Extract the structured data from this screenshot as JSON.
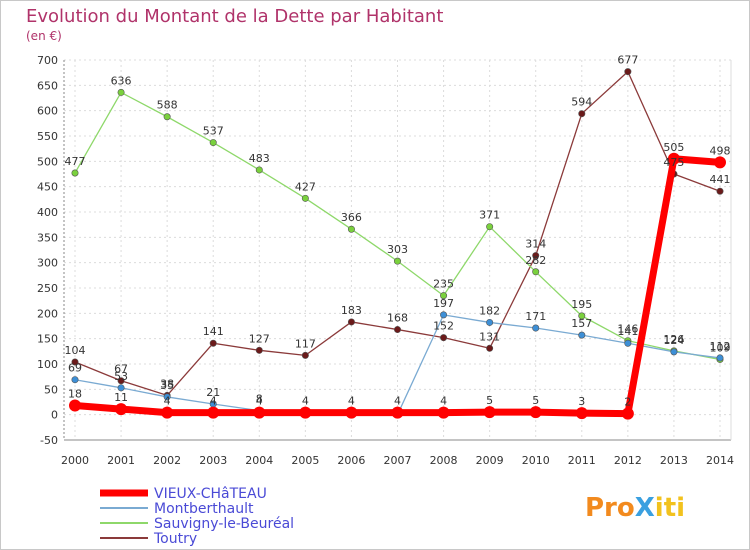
{
  "chart_data": {
    "type": "line",
    "title": "Evolution du Montant de la Dette par Habitant",
    "subtitle": "(en €)",
    "xlabel": "",
    "ylabel": "",
    "ylim": [
      -50,
      700
    ],
    "yticks": [
      -50,
      0,
      50,
      100,
      150,
      200,
      250,
      300,
      350,
      400,
      450,
      500,
      550,
      600,
      650,
      700
    ],
    "x": [
      "2000",
      "2001",
      "2002",
      "2003",
      "2004",
      "2005",
      "2006",
      "2007",
      "2008",
      "2009",
      "2010",
      "2011",
      "2012",
      "2013",
      "2014"
    ],
    "grid": true,
    "legend_position": "bottom-left",
    "series": [
      {
        "name": "VIEUX-CHâTEAU",
        "color": "#ff0000",
        "line_color": "#ff0000",
        "values": [
          18,
          11,
          4,
          4,
          4,
          4,
          4,
          4,
          4,
          5,
          5,
          3,
          2,
          505,
          498
        ],
        "labels": [
          "18",
          "11",
          "4",
          "4",
          "4",
          "4",
          "4",
          "4",
          "4",
          "5",
          "5",
          "3",
          "2",
          "505",
          "498"
        ]
      },
      {
        "name": "Montberthault",
        "color": "#3d8fd6",
        "line_color": "#7aaad2",
        "values": [
          69,
          53,
          35,
          21,
          8,
          0,
          0,
          0,
          197,
          182,
          171,
          157,
          141,
          124,
          112
        ],
        "labels": [
          "69",
          "53",
          "35",
          "21",
          "8",
          "",
          "",
          "",
          "197",
          "182",
          "171",
          "157",
          "141",
          "124",
          "112"
        ]
      },
      {
        "name": "Sauvigny-le-Beuréal",
        "color": "#7ad13d",
        "line_color": "#8ed86a",
        "values": [
          477,
          636,
          588,
          537,
          483,
          427,
          366,
          303,
          235,
          371,
          282,
          195,
          146,
          126,
          109
        ],
        "labels": [
          "477",
          "636",
          "588",
          "537",
          "483",
          "427",
          "366",
          "303",
          "235",
          "371",
          "282",
          "195",
          "146",
          "126",
          "109"
        ]
      },
      {
        "name": "Toutry",
        "color": "#6b1a1a",
        "line_color": "#8b3a3a",
        "values": [
          104,
          67,
          38,
          141,
          127,
          117,
          183,
          168,
          152,
          131,
          314,
          594,
          677,
          475,
          441
        ],
        "labels": [
          "104",
          "67",
          "38",
          "141",
          "127",
          "117",
          "183",
          "168",
          "152",
          "131",
          "314",
          "594",
          "677",
          "475",
          "441"
        ]
      }
    ]
  },
  "logo": {
    "text": "ProXiti"
  }
}
